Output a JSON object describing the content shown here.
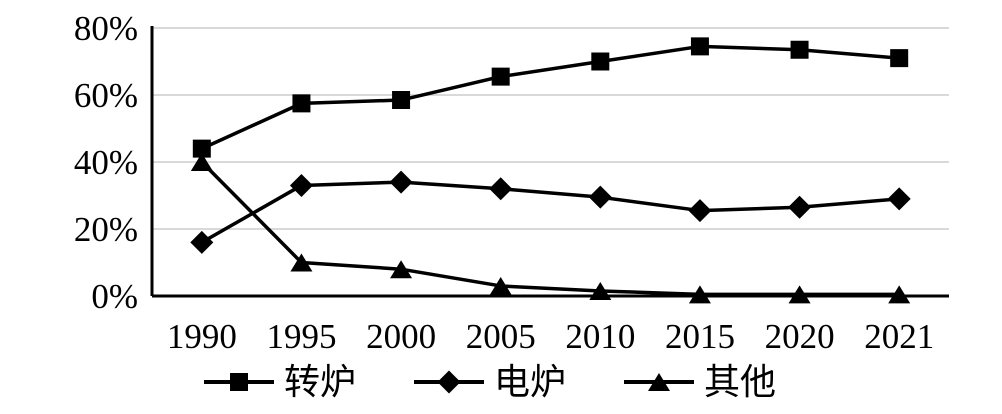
{
  "chart_data": {
    "type": "line",
    "title": "",
    "xlabel": "",
    "ylabel": "",
    "x": [
      "1990",
      "1995",
      "2000",
      "2005",
      "2010",
      "2015",
      "2020",
      "2021"
    ],
    "yticks": [
      "0%",
      "20%",
      "40%",
      "60%",
      "80%"
    ],
    "ytick_values": [
      0,
      20,
      40,
      60,
      80
    ],
    "ylim": [
      0,
      80
    ],
    "grid": true,
    "legend_position": "bottom",
    "series": [
      {
        "name": "转炉",
        "marker": "square",
        "values": [
          44,
          57.5,
          58.5,
          65.5,
          70,
          74.5,
          73.5,
          71
        ]
      },
      {
        "name": "电炉",
        "marker": "diamond",
        "values": [
          16,
          33,
          34,
          32,
          29.5,
          25.5,
          26.5,
          29
        ]
      },
      {
        "name": "其他",
        "marker": "triangle",
        "values": [
          40,
          10,
          8,
          3,
          1.5,
          0.5,
          0.5,
          0.5
        ]
      }
    ],
    "colors": {
      "line": "#000000",
      "marker": "#000000",
      "grid": "#d9d9d9",
      "axis": "#000000",
      "text": "#000000",
      "background": "#ffffff"
    }
  }
}
